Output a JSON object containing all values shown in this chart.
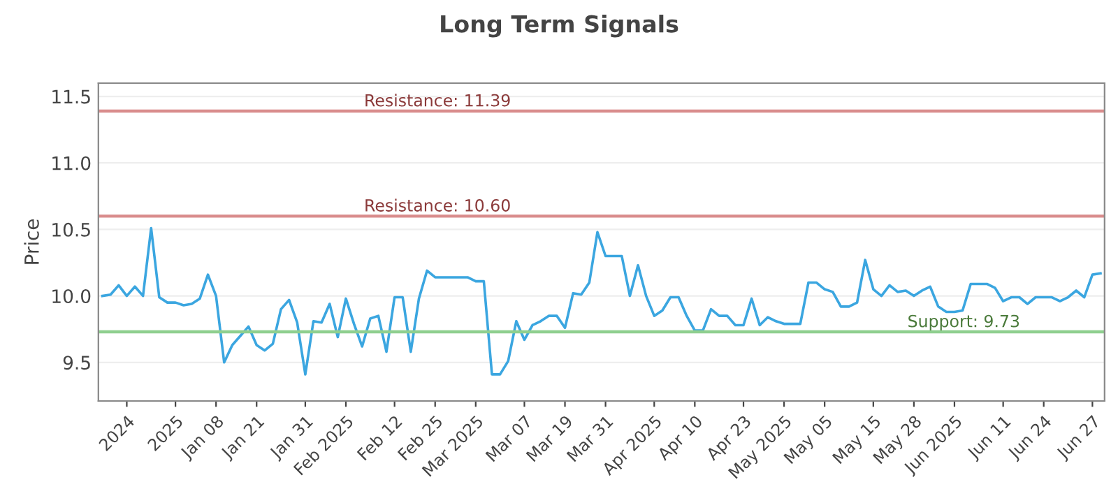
{
  "chart_data": {
    "type": "line",
    "title": "Long Term Signals",
    "ylabel": "Price",
    "categories": [
      null,
      null,
      null,
      "2024",
      null,
      null,
      null,
      null,
      null,
      "2025",
      null,
      null,
      null,
      null,
      "Jan 08",
      null,
      null,
      null,
      null,
      "Jan 21",
      null,
      null,
      null,
      null,
      null,
      "Jan 31",
      null,
      null,
      null,
      null,
      "Feb 2025",
      null,
      null,
      null,
      null,
      null,
      "Feb 12",
      null,
      null,
      null,
      null,
      "Feb 25",
      null,
      null,
      null,
      null,
      "Mar 2025",
      null,
      null,
      null,
      null,
      null,
      "Mar 07",
      null,
      null,
      null,
      null,
      "Mar 19",
      null,
      null,
      null,
      null,
      "Mar 31",
      null,
      null,
      null,
      null,
      null,
      "Apr 2025",
      null,
      null,
      null,
      null,
      "Apr 10",
      null,
      null,
      null,
      null,
      null,
      "Apr 23",
      null,
      null,
      null,
      null,
      "May 2025",
      null,
      null,
      null,
      null,
      "May 05",
      null,
      null,
      null,
      null,
      null,
      "May 15",
      null,
      null,
      null,
      null,
      "May 28",
      null,
      null,
      null,
      null,
      "Jun 2025",
      null,
      null,
      null,
      null,
      null,
      "Jun 11",
      null,
      null,
      null,
      null,
      "Jun 24",
      null,
      null,
      null,
      null,
      null,
      "Jun 27",
      null
    ],
    "series": [
      {
        "color": "#3ba6e0",
        "values": [
          10.0,
          10.01,
          10.08,
          10.0,
          10.07,
          10.0,
          10.51,
          9.99,
          9.95,
          9.95,
          9.93,
          9.94,
          9.98,
          10.16,
          10.0,
          9.5,
          9.63,
          9.7,
          9.77,
          9.63,
          9.59,
          9.64,
          9.9,
          9.97,
          9.8,
          9.41,
          9.81,
          9.8,
          9.94,
          9.69,
          9.98,
          9.79,
          9.62,
          9.83,
          9.85,
          9.58,
          9.99,
          9.99,
          9.58,
          9.98,
          10.19,
          10.14,
          10.14,
          10.14,
          10.14,
          10.14,
          10.11,
          10.11,
          9.41,
          9.41,
          9.51,
          9.81,
          9.67,
          9.78,
          9.81,
          9.85,
          9.85,
          9.76,
          10.02,
          10.01,
          10.1,
          10.48,
          10.3,
          10.3,
          10.3,
          10.0,
          10.23,
          10.0,
          9.85,
          9.89,
          9.99,
          9.99,
          9.85,
          9.74,
          9.74,
          9.9,
          9.85,
          9.85,
          9.78,
          9.78,
          9.98,
          9.78,
          9.84,
          9.81,
          9.79,
          9.79,
          9.79,
          10.1,
          10.1,
          10.05,
          10.03,
          9.92,
          9.92,
          9.95,
          10.27,
          10.05,
          10.0,
          10.08,
          10.03,
          10.04,
          10.0,
          10.04,
          10.07,
          9.92,
          9.88,
          9.88,
          9.89,
          10.09,
          10.09,
          10.09,
          10.06,
          9.96,
          9.99,
          9.99,
          9.94,
          9.99,
          9.99,
          9.99,
          9.96,
          9.99,
          10.04,
          9.99,
          10.16,
          10.17
        ]
      }
    ],
    "ylim": [
      9.21,
      11.6
    ],
    "yticks": [
      9.5,
      {
        "value": 10,
        "label": "10.0"
      },
      10.5,
      {
        "value": 11,
        "label": "11.0"
      },
      11.5
    ],
    "ref_lines": [
      {
        "axis": "y",
        "value": 11.39,
        "label": "Resistance: 11.39",
        "color": "#d98c8c"
      },
      {
        "axis": "y",
        "value": 10.6,
        "label": "Resistance: 10.60",
        "color": "#d98c8c"
      },
      {
        "axis": "y",
        "value": 9.73,
        "label": "Support: 9.73",
        "color": "#8fcf8f"
      }
    ],
    "grid": "y",
    "marker": "none",
    "line_style": "solid",
    "legend": false
  }
}
